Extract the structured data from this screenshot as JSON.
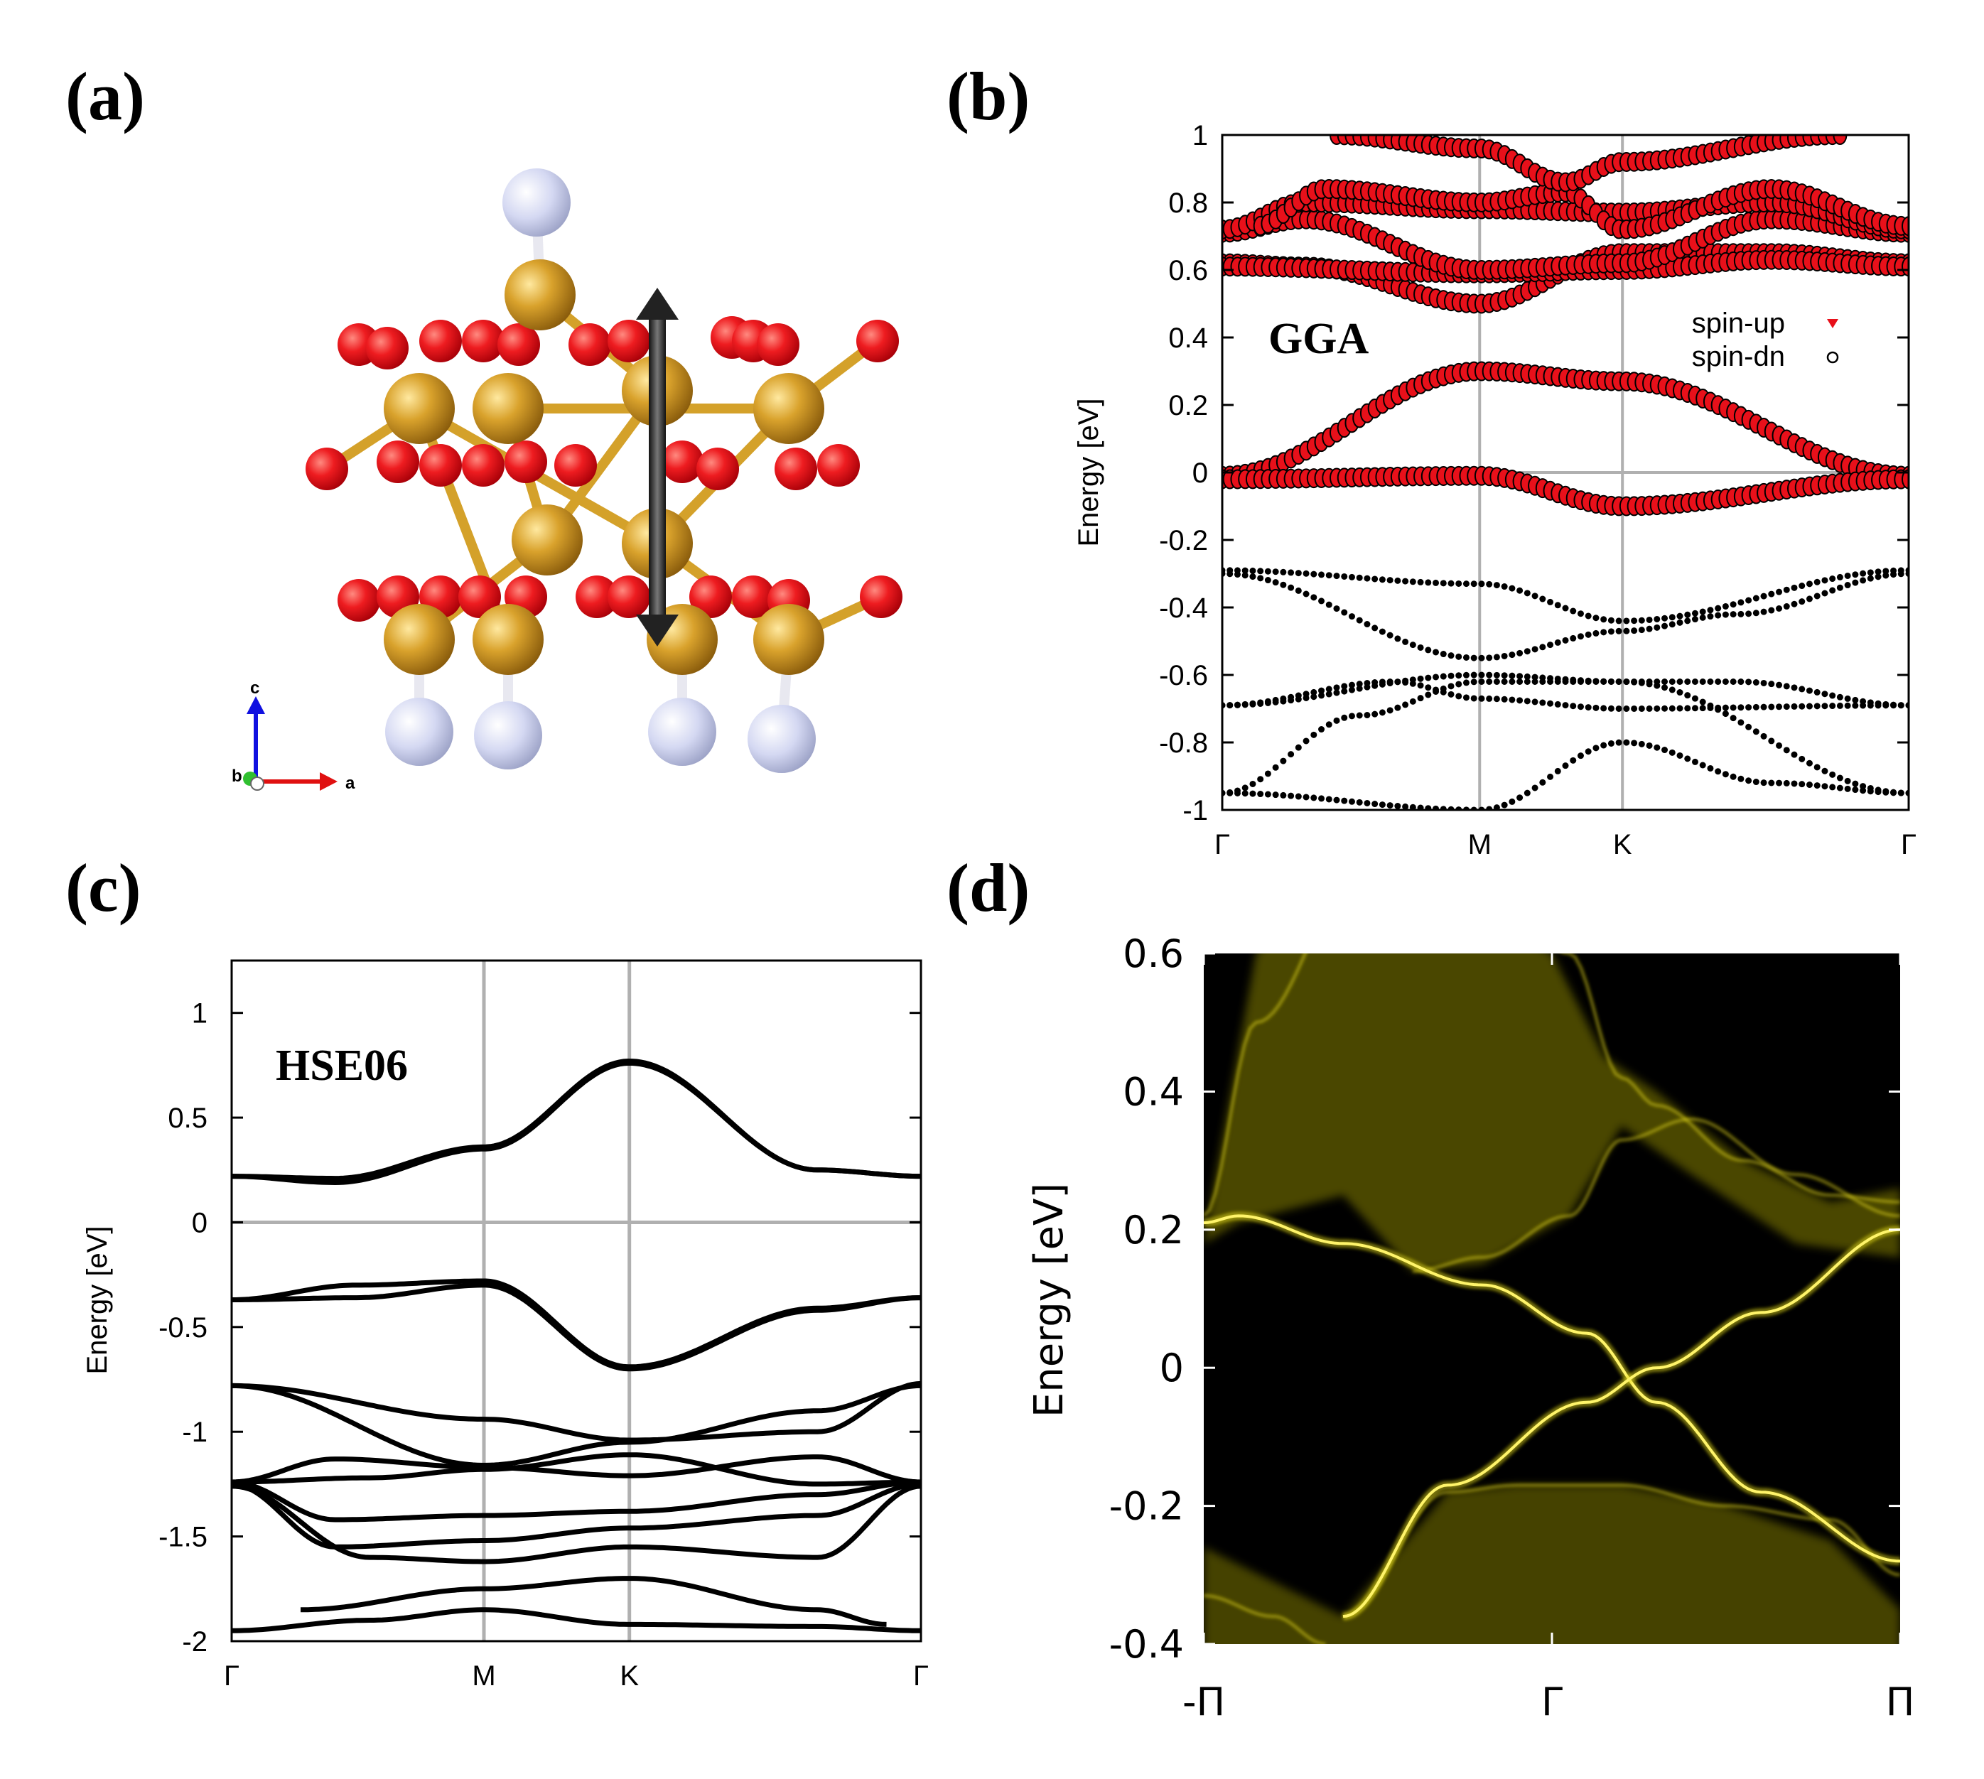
{
  "panels": {
    "a": {
      "label": "(a)",
      "axis_c": "c",
      "axis_a": "a",
      "axis_b": "b"
    },
    "b": {
      "label": "(b)"
    },
    "c": {
      "label": "(c)"
    },
    "d": {
      "label": "(d)"
    }
  },
  "colors": {
    "oxygen": "#e8101a",
    "metal": "#d4a12a",
    "hydrogen": "#d2d6f0",
    "spin_up": "#e8101a",
    "spin_dn": "#000000",
    "spectral": "#e6dc10"
  },
  "chart_data": [
    {
      "id": "b",
      "type": "scatter",
      "title": "",
      "annotation": "GGA",
      "xlabel": "",
      "ylabel": "Energy [eV]",
      "ylim": [
        -1,
        1
      ],
      "yticks": [
        1,
        0.8,
        0.6,
        0.4,
        0.2,
        0,
        -0.2,
        -0.4,
        -0.6,
        -0.8,
        -1
      ],
      "ytick_labels": [
        "1",
        "0.8",
        "0.6",
        "0.4",
        "0.2",
        "0",
        "-0.2",
        "-0.4",
        "-0.6",
        "-0.8",
        "-1"
      ],
      "kpoints": [
        0,
        0.375,
        0.583,
        1.0
      ],
      "kpoint_labels": [
        "Γ",
        "M",
        "K",
        "Γ"
      ],
      "legend": [
        "spin-up",
        "spin-dn"
      ],
      "series": [
        {
          "name": "cb1",
          "weight": 1,
          "k": [
            0,
            0.375,
            0.583,
            1.0
          ],
          "e": [
            -0.01,
            0.3,
            0.27,
            -0.01
          ]
        },
        {
          "name": "cb2",
          "weight": 1,
          "k": [
            0,
            0.375,
            0.583,
            1.0
          ],
          "e": [
            -0.02,
            -0.01,
            -0.1,
            -0.02
          ]
        },
        {
          "name": "cb3",
          "weight": 1,
          "k": [
            0,
            0.12,
            0.375,
            0.583,
            0.8,
            1.0
          ],
          "e": [
            0.62,
            0.61,
            0.5,
            0.65,
            0.65,
            0.62
          ]
        },
        {
          "name": "cb4",
          "weight": 1,
          "k": [
            0,
            0.375,
            0.583,
            0.8,
            1.0
          ],
          "e": [
            0.61,
            0.59,
            0.6,
            0.63,
            0.61
          ]
        },
        {
          "name": "cb5",
          "weight": 1,
          "k": [
            0,
            0.12,
            0.375,
            0.583,
            0.8,
            1.0
          ],
          "e": [
            0.71,
            0.75,
            0.6,
            0.62,
            0.75,
            0.71
          ]
        },
        {
          "name": "cb6",
          "weight": 1,
          "k": [
            0,
            0.12,
            0.375,
            0.583,
            0.8,
            1.0
          ],
          "e": [
            0.72,
            0.8,
            0.78,
            0.77,
            0.8,
            0.72
          ]
        },
        {
          "name": "cb7",
          "weight": 1,
          "k": [
            0.05,
            0.15,
            0.375,
            0.5,
            0.583,
            0.8,
            1.0
          ],
          "e": [
            0.73,
            0.84,
            0.8,
            0.83,
            0.72,
            0.84,
            0.73
          ]
        },
        {
          "name": "cb8",
          "weight": 1,
          "k": [
            0.16,
            0.375,
            0.5,
            0.583,
            0.9
          ],
          "e": [
            1.0,
            0.96,
            0.86,
            0.92,
            1.0
          ]
        },
        {
          "name": "vb1",
          "weight": 0,
          "k": [
            0,
            0.375,
            0.583,
            1.0
          ],
          "e": [
            -0.29,
            -0.33,
            -0.44,
            -0.29
          ]
        },
        {
          "name": "vb2",
          "weight": 0,
          "k": [
            0,
            0.375,
            0.583,
            0.75,
            1.0
          ],
          "e": [
            -0.3,
            -0.55,
            -0.47,
            -0.42,
            -0.3
          ]
        },
        {
          "name": "vb3",
          "weight": 0,
          "k": [
            0,
            0.375,
            0.583,
            0.75,
            1.0
          ],
          "e": [
            -0.69,
            -0.6,
            -0.62,
            -0.62,
            -0.69
          ]
        },
        {
          "name": "vb4",
          "weight": 0,
          "k": [
            0,
            0.25,
            0.375,
            0.583,
            1.0
          ],
          "e": [
            -0.69,
            -0.62,
            -0.67,
            -0.7,
            -0.69
          ]
        },
        {
          "name": "vb5",
          "weight": 0,
          "k": [
            0,
            0.375,
            0.583,
            0.8,
            1.0
          ],
          "e": [
            -0.95,
            -1.0,
            -0.8,
            -0.92,
            -0.95
          ]
        },
        {
          "name": "vb6",
          "weight": 0,
          "k": [
            0,
            0.2,
            0.375,
            0.583,
            1.0
          ],
          "e": [
            -0.95,
            -0.72,
            -0.62,
            -0.62,
            -0.95
          ]
        }
      ]
    },
    {
      "id": "c",
      "type": "line",
      "title": "",
      "annotation": "HSE06",
      "xlabel": "",
      "ylabel": "Energy [eV]",
      "ylim": [
        -2,
        1.25
      ],
      "yticks": [
        1,
        0.5,
        0,
        -0.5,
        -1,
        -1.5,
        -2
      ],
      "ytick_labels": [
        "1",
        "0.5",
        "0",
        "-0.5",
        "-1",
        "-1.5",
        "-2"
      ],
      "kpoints": [
        0,
        0.366,
        0.577,
        1.0
      ],
      "kpoint_labels": [
        "Γ",
        "M",
        "K",
        "Γ"
      ],
      "series": [
        {
          "name": "c1",
          "k": [
            0,
            0.15,
            0.366,
            0.577,
            0.85,
            1.0
          ],
          "e": [
            0.22,
            0.19,
            0.35,
            0.76,
            0.25,
            0.22
          ]
        },
        {
          "name": "c2",
          "k": [
            0,
            0.15,
            0.366,
            0.577,
            0.85,
            1.0
          ],
          "e": [
            0.22,
            0.21,
            0.36,
            0.77,
            0.25,
            0.22
          ]
        },
        {
          "name": "v1",
          "k": [
            0,
            0.18,
            0.366,
            0.577,
            0.85,
            1.0
          ],
          "e": [
            -0.37,
            -0.36,
            -0.3,
            -0.7,
            -0.42,
            -0.36
          ]
        },
        {
          "name": "v2",
          "k": [
            0,
            0.18,
            0.366,
            0.577,
            0.85,
            1.0
          ],
          "e": [
            -0.37,
            -0.3,
            -0.28,
            -0.69,
            -0.41,
            -0.36
          ]
        },
        {
          "name": "v3",
          "k": [
            0,
            0.366,
            0.577,
            0.85,
            1.0
          ],
          "e": [
            -0.78,
            -0.94,
            -1.04,
            -1.0,
            -0.77
          ]
        },
        {
          "name": "v4",
          "k": [
            0,
            0.366,
            0.577,
            0.85,
            1.0
          ],
          "e": [
            -0.78,
            -1.16,
            -1.05,
            -0.9,
            -0.78
          ]
        },
        {
          "name": "v5",
          "k": [
            0,
            0.15,
            0.366,
            0.577,
            0.85,
            1.0
          ],
          "e": [
            -1.24,
            -1.13,
            -1.17,
            -1.21,
            -1.12,
            -1.24
          ]
        },
        {
          "name": "v6",
          "k": [
            0,
            0.2,
            0.366,
            0.577,
            0.85,
            1.0
          ],
          "e": [
            -1.24,
            -1.22,
            -1.18,
            -1.11,
            -1.25,
            -1.24
          ]
        },
        {
          "name": "v7",
          "k": [
            0,
            0.15,
            0.366,
            0.577,
            0.85,
            1.0
          ],
          "e": [
            -1.24,
            -1.42,
            -1.4,
            -1.38,
            -1.3,
            -1.24
          ]
        },
        {
          "name": "v8",
          "k": [
            0,
            0.15,
            0.366,
            0.577,
            0.85,
            1.0
          ],
          "e": [
            -1.25,
            -1.55,
            -1.52,
            -1.46,
            -1.4,
            -1.25
          ]
        },
        {
          "name": "v9",
          "k": [
            0,
            0.2,
            0.366,
            0.577,
            0.85,
            1.0
          ],
          "e": [
            -1.26,
            -1.6,
            -1.62,
            -1.55,
            -1.6,
            -1.26
          ]
        },
        {
          "name": "v10",
          "k": [
            0.1,
            0.366,
            0.577,
            0.85,
            0.95
          ],
          "e": [
            -1.85,
            -1.75,
            -1.7,
            -1.85,
            -1.92
          ]
        },
        {
          "name": "v11",
          "k": [
            0,
            0.2,
            0.366,
            0.577,
            0.85,
            1.0
          ],
          "e": [
            -1.95,
            -1.9,
            -1.85,
            -1.92,
            -1.93,
            -1.95
          ]
        }
      ]
    },
    {
      "id": "d",
      "type": "heatmap",
      "title": "",
      "xlabel": "",
      "ylabel": "Energy [eV]",
      "ylim": [
        -0.4,
        0.6
      ],
      "yticks": [
        0.6,
        0.4,
        0.2,
        0,
        -0.2,
        -0.4
      ],
      "ytick_labels": [
        "0.6",
        "0.4",
        "0.2",
        "0",
        "-0.2",
        "-0.4"
      ],
      "xlim": [
        -1,
        1
      ],
      "xticks": [
        -1,
        0,
        1
      ],
      "xtick_labels": [
        "-Π",
        "Γ",
        "Π"
      ],
      "edge_states": [
        {
          "name": "edge1",
          "x": [
            -1,
            -0.9,
            -0.6,
            -0.2,
            0.1,
            0.3,
            0.6,
            1.0
          ],
          "e": [
            0.21,
            0.22,
            0.18,
            0.12,
            0.05,
            -0.05,
            -0.18,
            -0.28
          ]
        },
        {
          "name": "edge2",
          "x": [
            -0.6,
            -0.3,
            0.1,
            0.3,
            0.6,
            1.0
          ],
          "e": [
            -0.36,
            -0.17,
            -0.05,
            0.0,
            0.08,
            0.2
          ]
        }
      ]
    }
  ]
}
